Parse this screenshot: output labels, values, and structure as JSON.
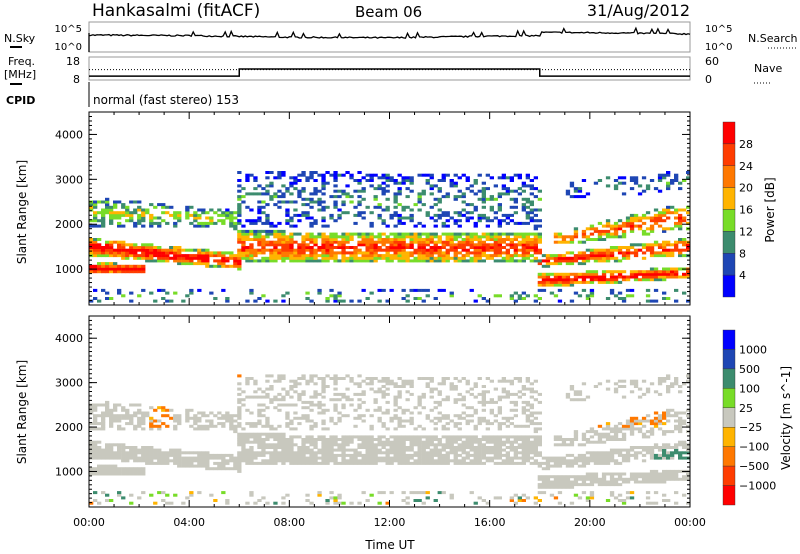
{
  "header": {
    "station": "Hankasalmi (fitACF)",
    "beam": "Beam 06",
    "date": "31/Aug/2012"
  },
  "noise_panel": {
    "left_label": "N.Sky",
    "right_label": "N.Search",
    "left_ticks": [
      "10^5",
      "10^0"
    ],
    "right_ticks": [
      "10^5",
      "10^0"
    ],
    "sky_log_level": [
      [
        0,
        3.1
      ],
      [
        4,
        3.0
      ],
      [
        8,
        2.7
      ],
      [
        12,
        2.6
      ],
      [
        16,
        2.9
      ],
      [
        18,
        3.0
      ],
      [
        18.05,
        3.6
      ],
      [
        21,
        3.5
      ],
      [
        24,
        3.3
      ]
    ]
  },
  "freq_panel": {
    "left_label_1": "Freq.",
    "left_label_2": "[MHz]",
    "right_label": "Nave",
    "left_ticks": [
      "18",
      "8"
    ],
    "right_ticks": [
      "60",
      "0"
    ],
    "freq_ylim": [
      8,
      18
    ],
    "nave_ylim": [
      0,
      60
    ],
    "freq_steps": [
      [
        0,
        9.7
      ],
      [
        6,
        9.7
      ],
      [
        6,
        12.8
      ],
      [
        18,
        12.8
      ],
      [
        18,
        9.7
      ],
      [
        24,
        9.7
      ]
    ],
    "nave_level": 27
  },
  "cpid": {
    "label": "CPID",
    "value": "normal (fast stereo) 153"
  },
  "chart_data": [
    {
      "type": "heatmap",
      "title": "Power",
      "ylabel": "Slant Range [km]",
      "xlabel": "Time UT",
      "xlim": [
        0,
        24
      ],
      "ylim": [
        200,
        4500
      ],
      "yticks": [
        "4000",
        "3000",
        "2000",
        "1000"
      ],
      "ytick_values": [
        4000,
        3000,
        2000,
        1000
      ],
      "colorbar": {
        "label": "Power [dB]",
        "ticks": [
          "28",
          "24",
          "20",
          "16",
          "12",
          "8",
          "4"
        ],
        "colors": [
          "#ff0000",
          "#ff3c00",
          "#ff7800",
          "#ffb400",
          "#78dc28",
          "#3c8c6e",
          "#1e46b4",
          "#0000ff"
        ]
      },
      "echo_regions": [
        {
          "t": [
            0,
            2.2
          ],
          "r0": [
            900,
            900
          ],
          "r1": [
            1150,
            1100
          ],
          "power": 30,
          "fill": 0.95
        },
        {
          "t": [
            0,
            6
          ],
          "r0": [
            1300,
            1000
          ],
          "r1": [
            1700,
            1350
          ],
          "power": 28,
          "fill": 0.85
        },
        {
          "t": [
            6,
            18
          ],
          "r0": [
            1150,
            1150
          ],
          "r1": [
            1850,
            1800
          ],
          "power": 24,
          "fill": 0.8
        },
        {
          "t": [
            0,
            6
          ],
          "r0": [
            1950,
            1900
          ],
          "r1": [
            2600,
            2300
          ],
          "power": 14,
          "fill": 0.55
        },
        {
          "t": [
            6,
            18
          ],
          "r0": [
            1950,
            1900
          ],
          "r1": [
            3200,
            3100
          ],
          "power": 8,
          "fill": 0.35
        },
        {
          "t": [
            18,
            24
          ],
          "r0": [
            600,
            800
          ],
          "r1": [
            900,
            1050
          ],
          "power": 28,
          "fill": 0.85
        },
        {
          "t": [
            18,
            24
          ],
          "r0": [
            1050,
            1300
          ],
          "r1": [
            1300,
            1700
          ],
          "power": 26,
          "fill": 0.75
        },
        {
          "t": [
            18.5,
            24
          ],
          "r0": [
            1500,
            1900
          ],
          "r1": [
            1800,
            2500
          ],
          "power": 22,
          "fill": 0.55
        },
        {
          "t": [
            19,
            24
          ],
          "r0": [
            2600,
            2700
          ],
          "r1": [
            3000,
            3200
          ],
          "power": 8,
          "fill": 0.25
        },
        {
          "t": [
            0,
            24
          ],
          "r0": [
            250,
            250
          ],
          "r1": [
            550,
            550
          ],
          "power": 10,
          "fill": 0.2
        }
      ]
    },
    {
      "type": "heatmap",
      "title": "Velocity",
      "ylabel": "Slant Range [km]",
      "xlabel": "Time UT",
      "xlim": [
        0,
        24
      ],
      "ylim": [
        200,
        4500
      ],
      "yticks": [
        "4000",
        "3000",
        "2000",
        "1000"
      ],
      "ytick_values": [
        4000,
        3000,
        2000,
        1000
      ],
      "xticks": [
        "00:00",
        "04:00",
        "08:00",
        "12:00",
        "16:00",
        "20:00",
        "00:00"
      ],
      "xtick_values": [
        0,
        4,
        8,
        12,
        16,
        20,
        24
      ],
      "colorbar": {
        "label": "Velocity [m s^-1]",
        "ticks": [
          "1000",
          "500",
          "100",
          "25",
          "−25",
          "−100",
          "−500",
          "−1000"
        ],
        "colors": [
          "#0000ff",
          "#1e46b4",
          "#3c8c6e",
          "#78dc28",
          "#c8c8be",
          "#ffb400",
          "#ff7800",
          "#ff3c00",
          "#ff0000"
        ]
      },
      "velocity_patches": [
        {
          "t": [
            2.3,
            3.3
          ],
          "r": [
            2000,
            2700
          ],
          "velocity": -150
        },
        {
          "t": [
            4,
            6
          ],
          "r": [
            2900,
            3200
          ],
          "velocity": -150
        },
        {
          "t": [
            20,
            23
          ],
          "r": [
            2000,
            2500
          ],
          "velocity": -150
        },
        {
          "t": [
            0,
            1.5
          ],
          "r": [
            600,
            900
          ],
          "velocity": 60
        },
        {
          "t": [
            22.5,
            24
          ],
          "r": [
            1200,
            1500
          ],
          "velocity": 200
        }
      ]
    }
  ],
  "xaxis": {
    "label": "Time UT"
  }
}
